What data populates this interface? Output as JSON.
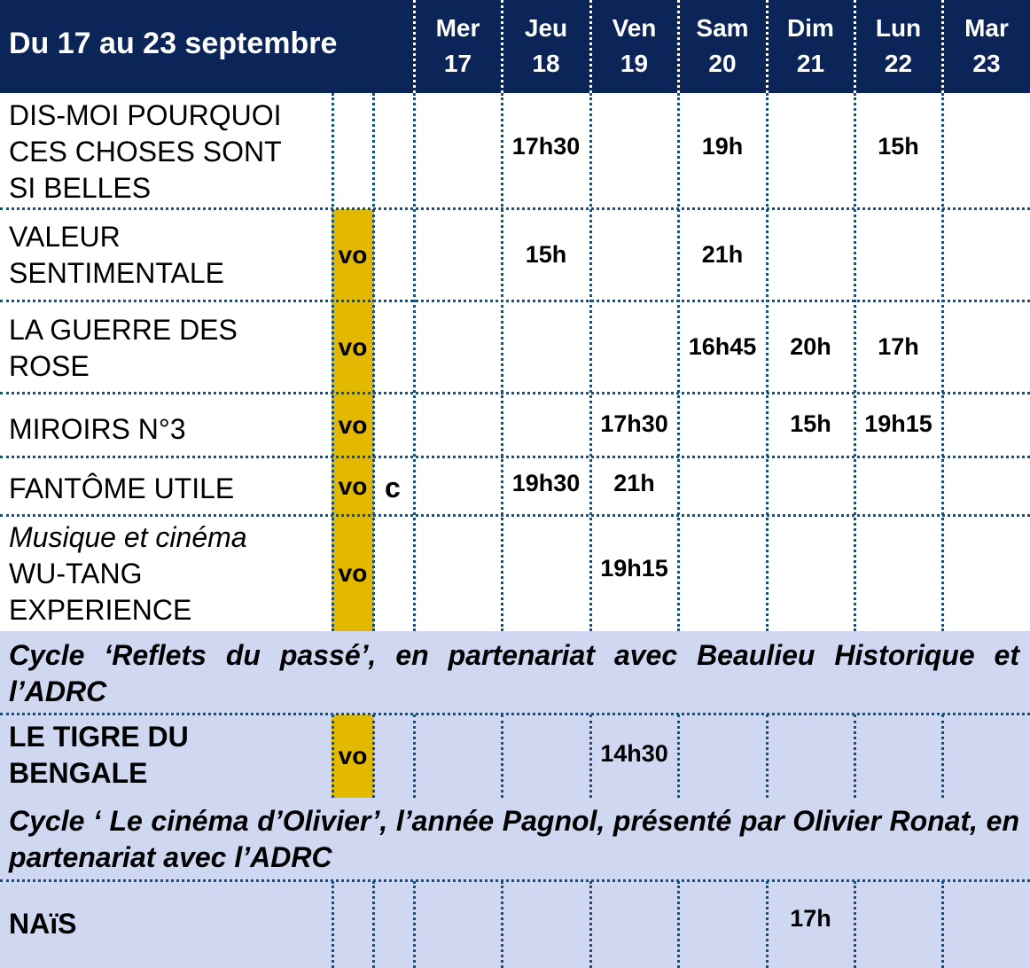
{
  "header": {
    "title": "Du 17 au 23 septembre",
    "days": [
      {
        "name": "Mer",
        "num": "17"
      },
      {
        "name": "Jeu",
        "num": "18"
      },
      {
        "name": "Ven",
        "num": "19"
      },
      {
        "name": "Sam",
        "num": "20"
      },
      {
        "name": "Dim",
        "num": "21"
      },
      {
        "name": "Lun",
        "num": "22"
      },
      {
        "name": "Mar",
        "num": "23"
      }
    ]
  },
  "films": [
    {
      "lines": [
        "DIS-MOI POURQUOI",
        "CES CHOSES SONT",
        "SI BELLES"
      ],
      "vo": "",
      "c": "",
      "times": {
        "jeu": "17h30",
        "sam": "19h",
        "lun": "15h"
      }
    },
    {
      "lines": [
        "VALEUR",
        "SENTIMENTALE"
      ],
      "vo": "vo",
      "c": "",
      "times": {
        "jeu": "15h",
        "sam": "21h"
      }
    },
    {
      "lines": [
        "LA GUERRE DES",
        "ROSE"
      ],
      "vo": "vo",
      "c": "",
      "times": {
        "sam": "16h45",
        "dim": "20h",
        "lun": "17h"
      }
    },
    {
      "lines": [
        "MIROIRS N°3"
      ],
      "vo": "vo",
      "c": "",
      "times": {
        "ven": "17h30",
        "dim": "15h",
        "lun": "19h15"
      }
    },
    {
      "lines": [
        "FANTÔME UTILE"
      ],
      "vo": "vo",
      "c": "c",
      "times": {
        "jeu": "19h30",
        "ven": "21h"
      }
    },
    {
      "subtitle": "Musique et cinéma",
      "lines": [
        "WU-TANG",
        "EXPERIENCE"
      ],
      "vo": "vo",
      "c": "",
      "times": {
        "ven": "19h15"
      }
    },
    {
      "lines": [
        "LE TIGRE DU",
        "BENGALE"
      ],
      "vo": "vo",
      "c": "",
      "times": {
        "ven": "14h30"
      }
    },
    {
      "lines": [
        "NAïS"
      ],
      "vo": "",
      "c": "",
      "times": {
        "dim": "17h"
      }
    }
  ],
  "cycles": [
    {
      "text": "Cycle ‘Reflets du passé’, en partenariat avec Beaulieu Historique et l’ADRC"
    },
    {
      "text": "Cycle ‘ Le cinéma d’Olivier’, l’année Pagnol, présenté par Olivier Ronat, en partenariat avec l’ADRC"
    }
  ],
  "colors": {
    "header_bg": "#0b2559",
    "band_bg": "#cfd8f0",
    "vo_bg": "#e3b800",
    "grid": "#1a4f7a"
  }
}
